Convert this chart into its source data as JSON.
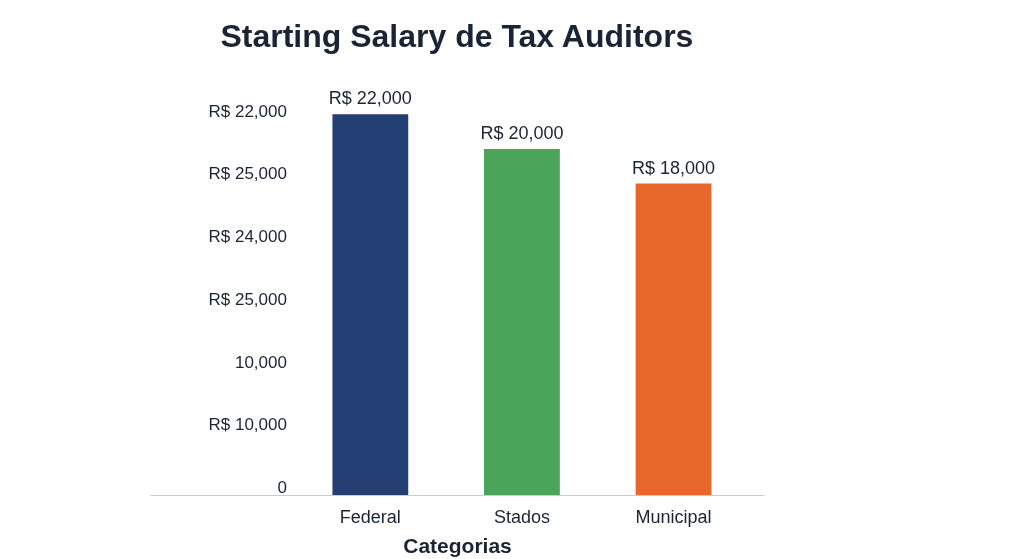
{
  "chart_data": {
    "type": "bar",
    "title": "Starting Salary de Tax Auditors",
    "xlabel": "Categorias",
    "categories": [
      "Federal",
      "Stados",
      "Municipal"
    ],
    "values": [
      22000,
      20000,
      18000
    ],
    "colors": [
      "#243f73",
      "#4aa55a",
      "#e8672a"
    ],
    "value_labels": [
      "R$ 22,000",
      "R$ 20,000",
      "R$ 18,000"
    ],
    "annotations": [
      "R$ 22,000",
      "R$ 25,000",
      "R$ 24,000",
      "R$ 25,000",
      "10,000",
      "R$ 10,000",
      "0"
    ]
  }
}
